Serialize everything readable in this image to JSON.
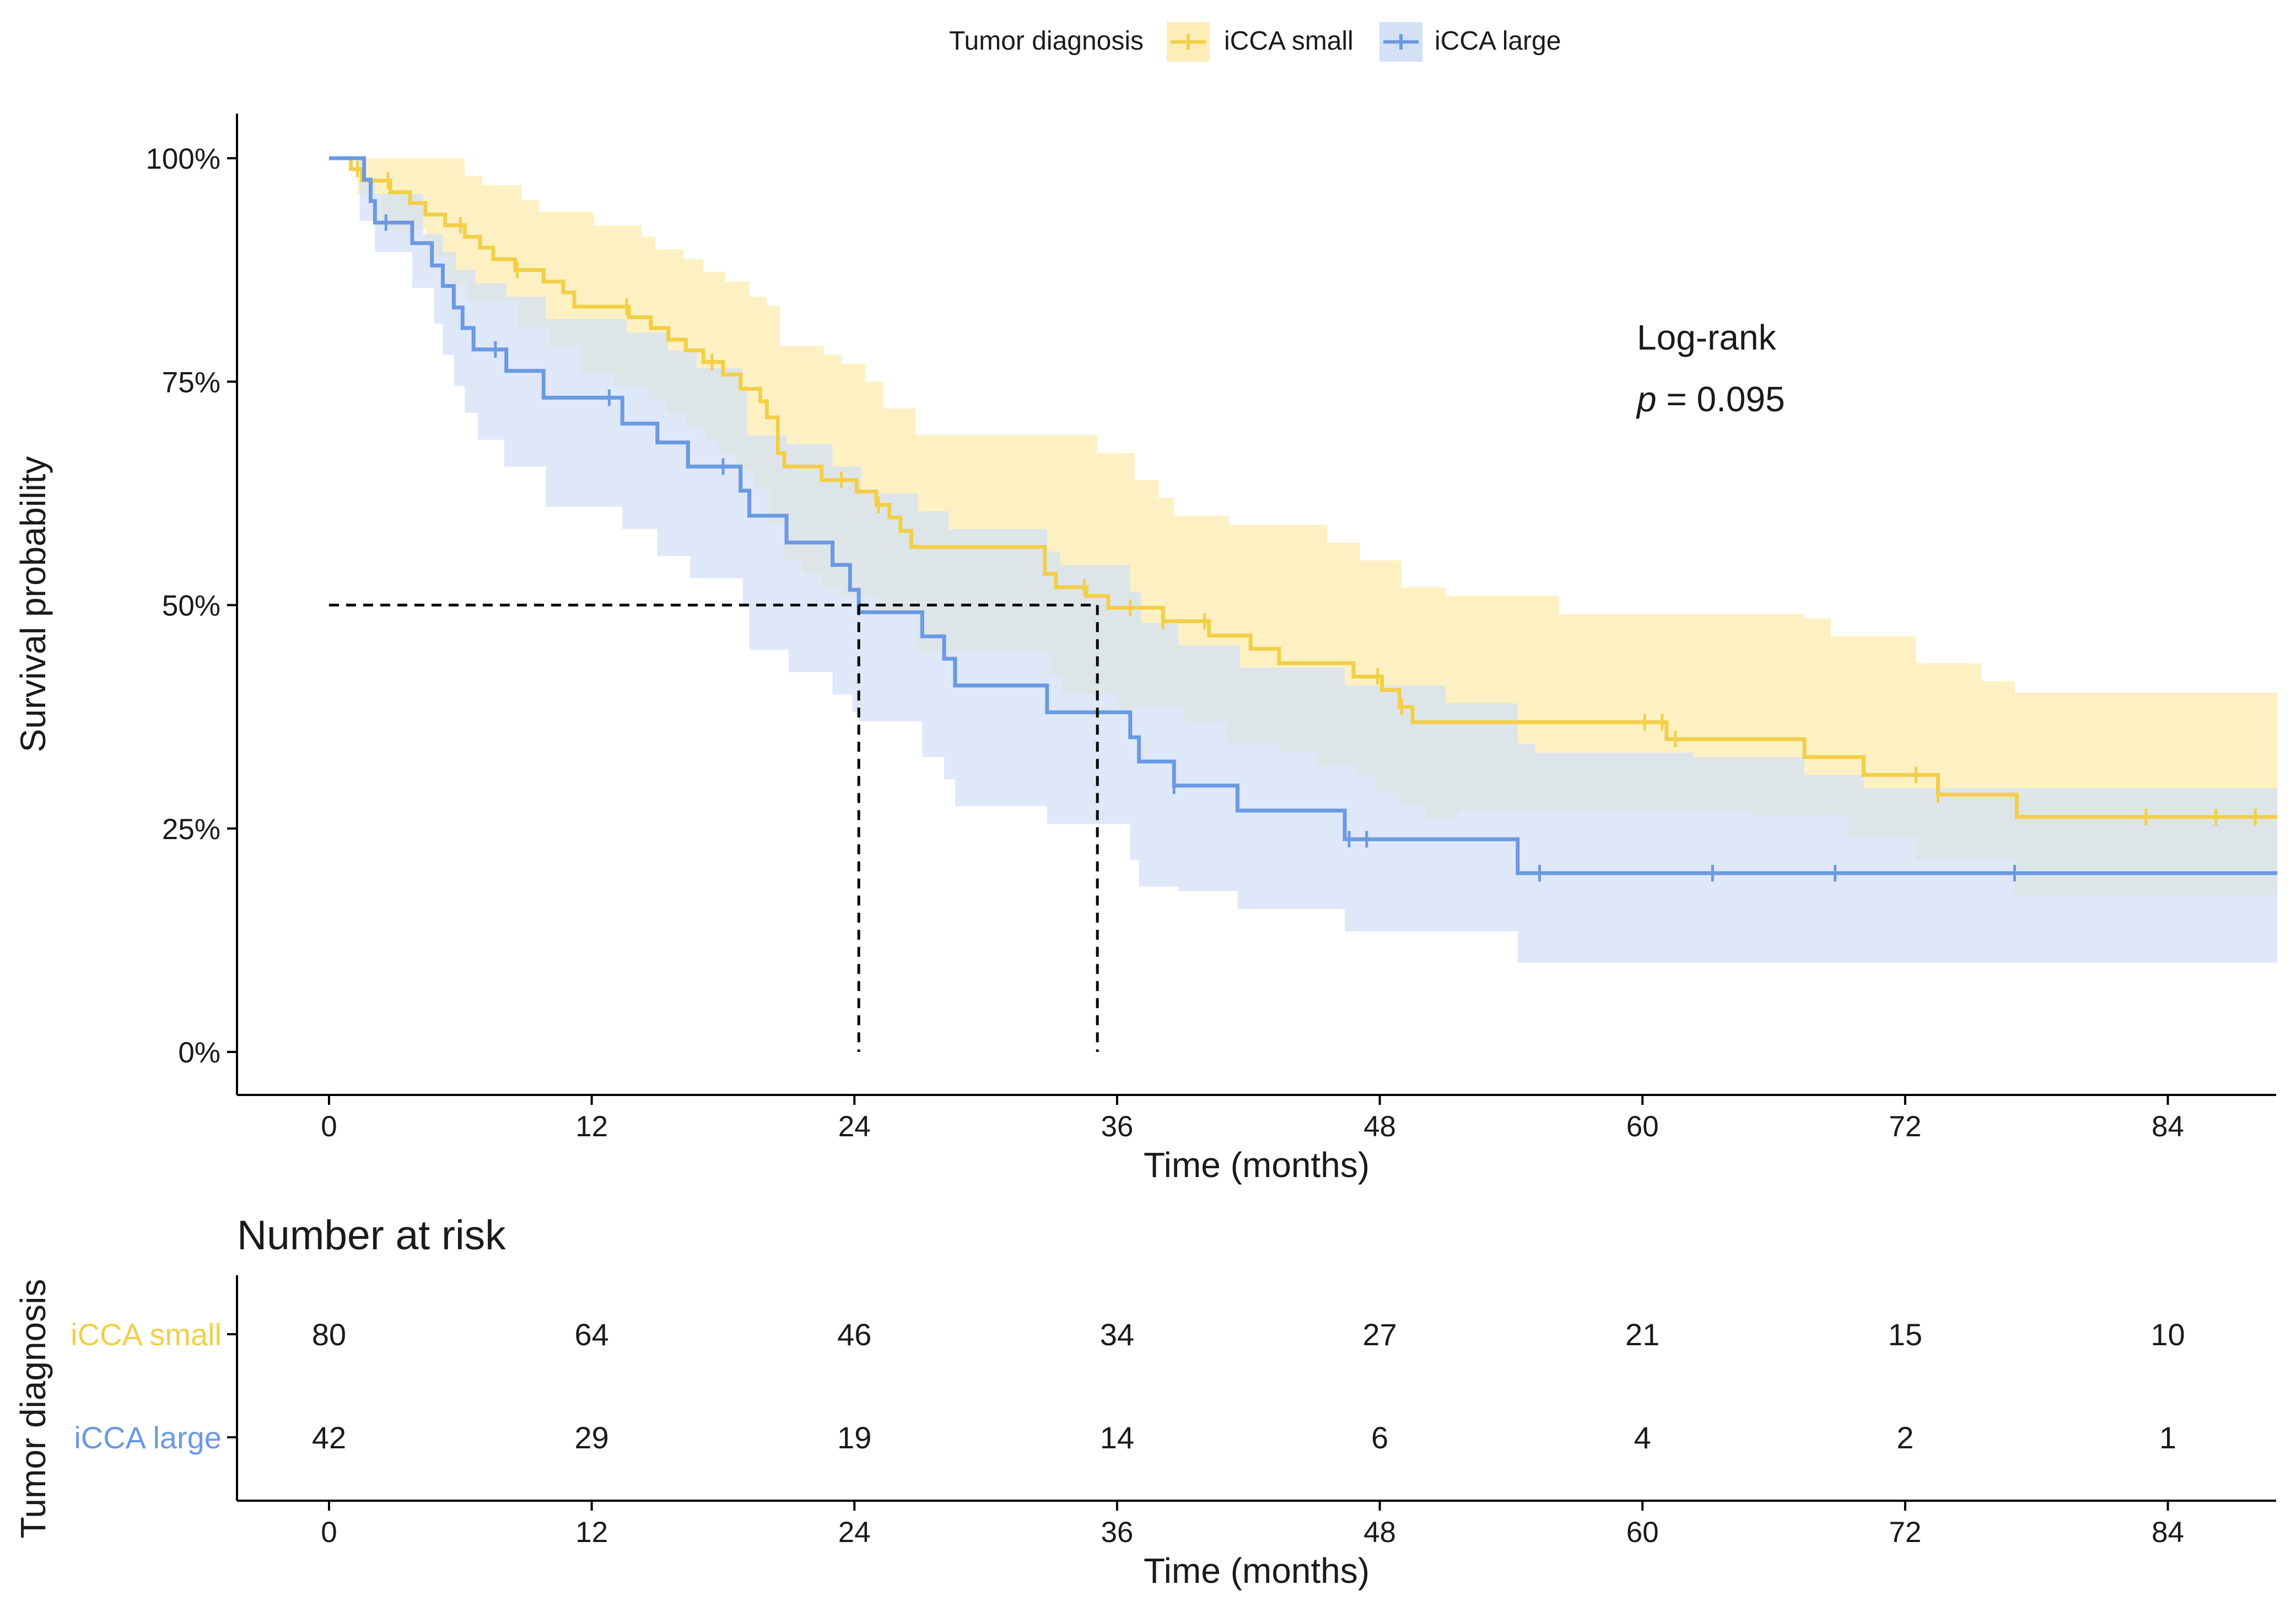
{
  "chart_data": {
    "type": "kaplan-meier",
    "legend": {
      "title": "Tumor diagnosis",
      "entries": [
        "iCCA small",
        "iCCA large"
      ],
      "placement": "top-center"
    },
    "xlabel": "Time (months)",
    "ylabel": "Survival probability",
    "xlim": [
      -7,
      88
    ],
    "ylim": [
      -0.05,
      1.05
    ],
    "x_ticks": [
      0,
      12,
      24,
      36,
      48,
      60,
      72,
      84
    ],
    "y_ticks": [
      0,
      0.25,
      0.5,
      0.75,
      1.0
    ],
    "y_tick_labels": [
      "0%",
      "25%",
      "50%",
      "75%",
      "100%"
    ],
    "annotation": {
      "line1": "Log-rank",
      "p_label": "p",
      "p_value": "= 0.095",
      "placement": "upper-right"
    },
    "median_line": {
      "y": 0.5,
      "x": [
        24.2,
        35.1
      ]
    },
    "series": [
      {
        "name": "iCCA small",
        "color": "#f2cf46",
        "ci_color": "#fdeeb8",
        "steps": [
          [
            0,
            1.0
          ],
          [
            1.0,
            0.988
          ],
          [
            1.5,
            0.975
          ],
          [
            2.8,
            0.962
          ],
          [
            3.7,
            0.95
          ],
          [
            4.4,
            0.937
          ],
          [
            5.3,
            0.925
          ],
          [
            6.2,
            0.912
          ],
          [
            6.9,
            0.9
          ],
          [
            7.5,
            0.887
          ],
          [
            8.5,
            0.875
          ],
          [
            9.8,
            0.862
          ],
          [
            10.7,
            0.85
          ],
          [
            11.2,
            0.834
          ],
          [
            13.7,
            0.822
          ],
          [
            14.7,
            0.81
          ],
          [
            15.5,
            0.797
          ],
          [
            16.3,
            0.785
          ],
          [
            17.1,
            0.772
          ],
          [
            18.0,
            0.758
          ],
          [
            18.8,
            0.742
          ],
          [
            19.7,
            0.728
          ],
          [
            20.0,
            0.71
          ],
          [
            20.5,
            0.67
          ],
          [
            20.8,
            0.655
          ],
          [
            22.5,
            0.64
          ],
          [
            24.1,
            0.627
          ],
          [
            25.0,
            0.612
          ],
          [
            25.6,
            0.598
          ],
          [
            26.1,
            0.583
          ],
          [
            26.6,
            0.565
          ],
          [
            32.7,
            0.535
          ],
          [
            33.2,
            0.52
          ],
          [
            34.6,
            0.51
          ],
          [
            35.6,
            0.497
          ],
          [
            38.1,
            0.482
          ],
          [
            40.2,
            0.466
          ],
          [
            42.1,
            0.451
          ],
          [
            43.4,
            0.435
          ],
          [
            46.8,
            0.42
          ],
          [
            48.1,
            0.405
          ],
          [
            48.9,
            0.386
          ],
          [
            49.5,
            0.369
          ],
          [
            61.1,
            0.35
          ],
          [
            67.4,
            0.33
          ],
          [
            70.1,
            0.31
          ],
          [
            73.5,
            0.288
          ],
          [
            77.1,
            0.263
          ],
          [
            89,
            0.263
          ]
        ],
        "ci_upper": [
          [
            0,
            1.0
          ],
          [
            5.3,
            1.0
          ],
          [
            6.2,
            0.98
          ],
          [
            7.0,
            0.97
          ],
          [
            8.8,
            0.953
          ],
          [
            9.6,
            0.94
          ],
          [
            12.1,
            0.925
          ],
          [
            14.3,
            0.912
          ],
          [
            14.9,
            0.898
          ],
          [
            16.2,
            0.887
          ],
          [
            17.1,
            0.873
          ],
          [
            18.1,
            0.862
          ],
          [
            19.2,
            0.845
          ],
          [
            20.0,
            0.835
          ],
          [
            20.6,
            0.79
          ],
          [
            22.6,
            0.78
          ],
          [
            23.4,
            0.77
          ],
          [
            24.5,
            0.75
          ],
          [
            25.3,
            0.72
          ],
          [
            26.8,
            0.69
          ],
          [
            35.1,
            0.67
          ],
          [
            36.8,
            0.64
          ],
          [
            37.9,
            0.62
          ],
          [
            38.6,
            0.6
          ],
          [
            41.1,
            0.59
          ],
          [
            45.6,
            0.57
          ],
          [
            47.1,
            0.55
          ],
          [
            49.0,
            0.52
          ],
          [
            51.0,
            0.51
          ],
          [
            56.2,
            0.49
          ],
          [
            67.4,
            0.485
          ],
          [
            68.6,
            0.465
          ],
          [
            72.5,
            0.435
          ],
          [
            75.5,
            0.415
          ],
          [
            77.0,
            0.402
          ],
          [
            89,
            0.402
          ]
        ],
        "ci_lower": [
          [
            0,
            1.0
          ],
          [
            1.3,
            0.96
          ],
          [
            2.4,
            0.92
          ],
          [
            4.4,
            0.89
          ],
          [
            5.4,
            0.86
          ],
          [
            6.3,
            0.84
          ],
          [
            8.6,
            0.81
          ],
          [
            10.1,
            0.79
          ],
          [
            11.5,
            0.76
          ],
          [
            13.0,
            0.745
          ],
          [
            14.6,
            0.73
          ],
          [
            15.4,
            0.715
          ],
          [
            16.3,
            0.7
          ],
          [
            17.2,
            0.685
          ],
          [
            17.8,
            0.67
          ],
          [
            18.6,
            0.65
          ],
          [
            19.4,
            0.63
          ],
          [
            20.1,
            0.59
          ],
          [
            20.8,
            0.55
          ],
          [
            21.6,
            0.535
          ],
          [
            22.5,
            0.52
          ],
          [
            23.4,
            0.51
          ],
          [
            25.1,
            0.49
          ],
          [
            26.8,
            0.45
          ],
          [
            27.0,
            0.448
          ],
          [
            32.9,
            0.42
          ],
          [
            33.5,
            0.4
          ],
          [
            36.0,
            0.385
          ],
          [
            39.1,
            0.37
          ],
          [
            41.0,
            0.345
          ],
          [
            43.4,
            0.335
          ],
          [
            45.1,
            0.32
          ],
          [
            46.9,
            0.308
          ],
          [
            47.8,
            0.29
          ],
          [
            48.9,
            0.275
          ],
          [
            50.1,
            0.26
          ],
          [
            51.6,
            0.27
          ],
          [
            65.0,
            0.265
          ],
          [
            69.4,
            0.24
          ],
          [
            72.5,
            0.215
          ],
          [
            77.0,
            0.175
          ],
          [
            89,
            0.175
          ]
        ],
        "censor": [
          1.3,
          2.7,
          6.0,
          8.6,
          13.6,
          17.5,
          23.4,
          25.1,
          34.5,
          36.6,
          38.1,
          40.0,
          47.9,
          49.0,
          60.1,
          60.9,
          61.5,
          72.5,
          73.5,
          83.0,
          86.2,
          88.0
        ]
      },
      {
        "name": "iCCA large",
        "color": "#6b99e3",
        "ci_color": "#d3e0f5",
        "steps": [
          [
            0,
            1.0
          ],
          [
            1.6,
            0.976
          ],
          [
            1.9,
            0.952
          ],
          [
            2.1,
            0.928
          ],
          [
            3.8,
            0.905
          ],
          [
            4.7,
            0.88
          ],
          [
            5.2,
            0.857
          ],
          [
            5.7,
            0.833
          ],
          [
            6.1,
            0.81
          ],
          [
            6.6,
            0.786
          ],
          [
            8.1,
            0.762
          ],
          [
            9.8,
            0.732
          ],
          [
            13.4,
            0.703
          ],
          [
            15.0,
            0.682
          ],
          [
            16.4,
            0.655
          ],
          [
            18.8,
            0.628
          ],
          [
            19.2,
            0.6
          ],
          [
            20.9,
            0.57
          ],
          [
            23.0,
            0.545
          ],
          [
            23.8,
            0.517
          ],
          [
            24.2,
            0.492
          ],
          [
            27.1,
            0.465
          ],
          [
            28.1,
            0.44
          ],
          [
            28.6,
            0.41
          ],
          [
            32.8,
            0.38
          ],
          [
            36.6,
            0.352
          ],
          [
            37.0,
            0.325
          ],
          [
            38.6,
            0.298
          ],
          [
            41.5,
            0.27
          ],
          [
            46.4,
            0.238
          ],
          [
            54.3,
            0.2
          ],
          [
            89,
            0.2
          ]
        ],
        "ci_upper": [
          [
            0,
            1.0
          ],
          [
            1.0,
            1.0
          ],
          [
            1.5,
            0.975
          ],
          [
            2.1,
            0.96
          ],
          [
            4.3,
            0.915
          ],
          [
            5.2,
            0.895
          ],
          [
            5.8,
            0.875
          ],
          [
            6.7,
            0.86
          ],
          [
            8.1,
            0.845
          ],
          [
            9.9,
            0.82
          ],
          [
            13.6,
            0.805
          ],
          [
            15.5,
            0.785
          ],
          [
            16.8,
            0.765
          ],
          [
            18.9,
            0.745
          ],
          [
            19.1,
            0.69
          ],
          [
            20.9,
            0.68
          ],
          [
            23.0,
            0.655
          ],
          [
            24.3,
            0.625
          ],
          [
            26.9,
            0.605
          ],
          [
            28.3,
            0.585
          ],
          [
            32.8,
            0.56
          ],
          [
            33.4,
            0.545
          ],
          [
            36.6,
            0.515
          ],
          [
            37.1,
            0.48
          ],
          [
            38.8,
            0.455
          ],
          [
            41.6,
            0.43
          ],
          [
            46.4,
            0.41
          ],
          [
            51.0,
            0.39
          ],
          [
            54.3,
            0.345
          ],
          [
            55.1,
            0.335
          ],
          [
            62.3,
            0.33
          ],
          [
            67.4,
            0.31
          ],
          [
            70.1,
            0.295
          ],
          [
            89,
            0.295
          ]
        ],
        "ci_lower": [
          [
            0,
            1.0
          ],
          [
            1.4,
            0.93
          ],
          [
            2.1,
            0.895
          ],
          [
            3.8,
            0.855
          ],
          [
            4.8,
            0.815
          ],
          [
            5.2,
            0.78
          ],
          [
            5.7,
            0.745
          ],
          [
            6.2,
            0.715
          ],
          [
            6.8,
            0.685
          ],
          [
            8.0,
            0.655
          ],
          [
            9.9,
            0.61
          ],
          [
            13.4,
            0.585
          ],
          [
            15.0,
            0.555
          ],
          [
            16.5,
            0.53
          ],
          [
            18.9,
            0.5
          ],
          [
            19.2,
            0.45
          ],
          [
            21.0,
            0.425
          ],
          [
            23.0,
            0.4
          ],
          [
            23.9,
            0.38
          ],
          [
            24.2,
            0.37
          ],
          [
            27.1,
            0.33
          ],
          [
            28.1,
            0.305
          ],
          [
            28.6,
            0.275
          ],
          [
            32.8,
            0.255
          ],
          [
            36.6,
            0.215
          ],
          [
            37.0,
            0.185
          ],
          [
            38.8,
            0.18
          ],
          [
            41.5,
            0.16
          ],
          [
            46.4,
            0.135
          ],
          [
            54.3,
            0.1
          ],
          [
            89,
            0.1
          ]
        ],
        "censor": [
          2.6,
          7.6,
          12.8,
          18.0,
          38.6,
          46.6,
          47.4,
          55.3,
          63.2,
          68.8,
          77.0
        ]
      }
    ],
    "risk_table": {
      "title": "Number at risk",
      "ylabel": "Tumor diagnosis",
      "xlabel": "Time (months)",
      "times": [
        0,
        12,
        24,
        36,
        48,
        60,
        72,
        84
      ],
      "rows": [
        {
          "name": "iCCA small",
          "color": "#f2cf46",
          "counts": [
            80,
            64,
            46,
            34,
            27,
            21,
            15,
            10
          ]
        },
        {
          "name": "iCCA large",
          "color": "#6b99e3",
          "counts": [
            42,
            29,
            19,
            14,
            6,
            4,
            2,
            1
          ]
        }
      ]
    }
  }
}
